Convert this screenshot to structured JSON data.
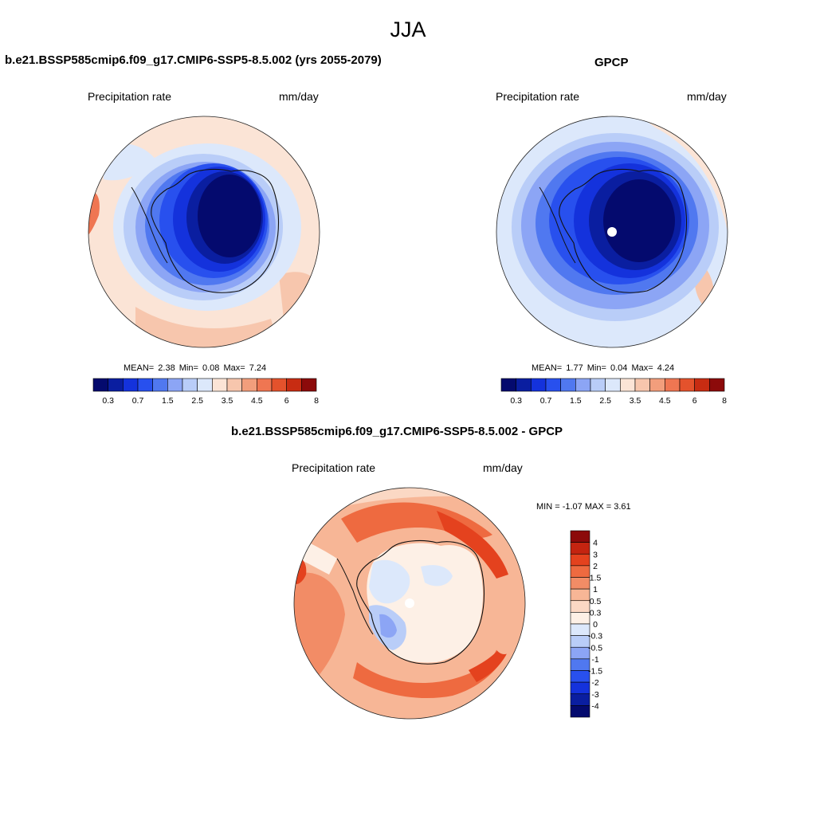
{
  "figure_title": "JJA",
  "panels": {
    "model": {
      "title": "b.e21.BSSP585cmip6.f09_g17.CMIP6-SSP5-8.5.002 (yrs 2055-2079)",
      "left_label": "Precipitation rate",
      "right_label": "mm/day",
      "stats": {
        "mean_label": "MEAN=",
        "mean": "2.38",
        "min_label": "Min=",
        "min": "0.08",
        "max_label": "Max=",
        "max": "7.24"
      }
    },
    "obs": {
      "title": "GPCP",
      "left_label": "Precipitation rate",
      "right_label": "mm/day",
      "stats": {
        "mean_label": "MEAN=",
        "mean": "1.77",
        "min_label": "Min=",
        "min": "0.04",
        "max_label": "Max=",
        "max": "4.24"
      }
    },
    "diff": {
      "title": "b.e21.BSSP585cmip6.f09_g17.CMIP6-SSP5-8.5.002 - GPCP",
      "left_label": "Precipitation rate",
      "right_label": "mm/day",
      "stats_text": "MIN =  -1.07 MAX =   3.61"
    }
  },
  "colorbars": {
    "abs_colors": [
      "#040a6e",
      "#0a1ea0",
      "#1432dc",
      "#2850ee",
      "#5078f0",
      "#8ca5f5",
      "#b9cdf8",
      "#dce8fb",
      "#fbe4d6",
      "#f7c6ad",
      "#f29e7c",
      "#ef7652",
      "#e4522c",
      "#c82c12",
      "#8c0a0a"
    ],
    "abs_ticks": [
      "0.3",
      "0.7",
      "1.5",
      "2.5",
      "3.5",
      "4.5",
      "6",
      "8"
    ],
    "diff_colors": [
      "#8c0a0a",
      "#c42410",
      "#e4421e",
      "#ee6a40",
      "#f28c66",
      "#f7b696",
      "#fbd8c4",
      "#fdf0e6",
      "#dce8fb",
      "#b9cdf8",
      "#8ca5f5",
      "#5078f0",
      "#2850ee",
      "#1432dc",
      "#0a1ea0",
      "#040a6e"
    ],
    "diff_ticks": [
      "4",
      "3",
      "2",
      "1.5",
      "1",
      "0.5",
      "0.3",
      "0",
      "-0.3",
      "-0.5",
      "-1",
      "-1.5",
      "-2",
      "-3",
      "-4"
    ]
  }
}
